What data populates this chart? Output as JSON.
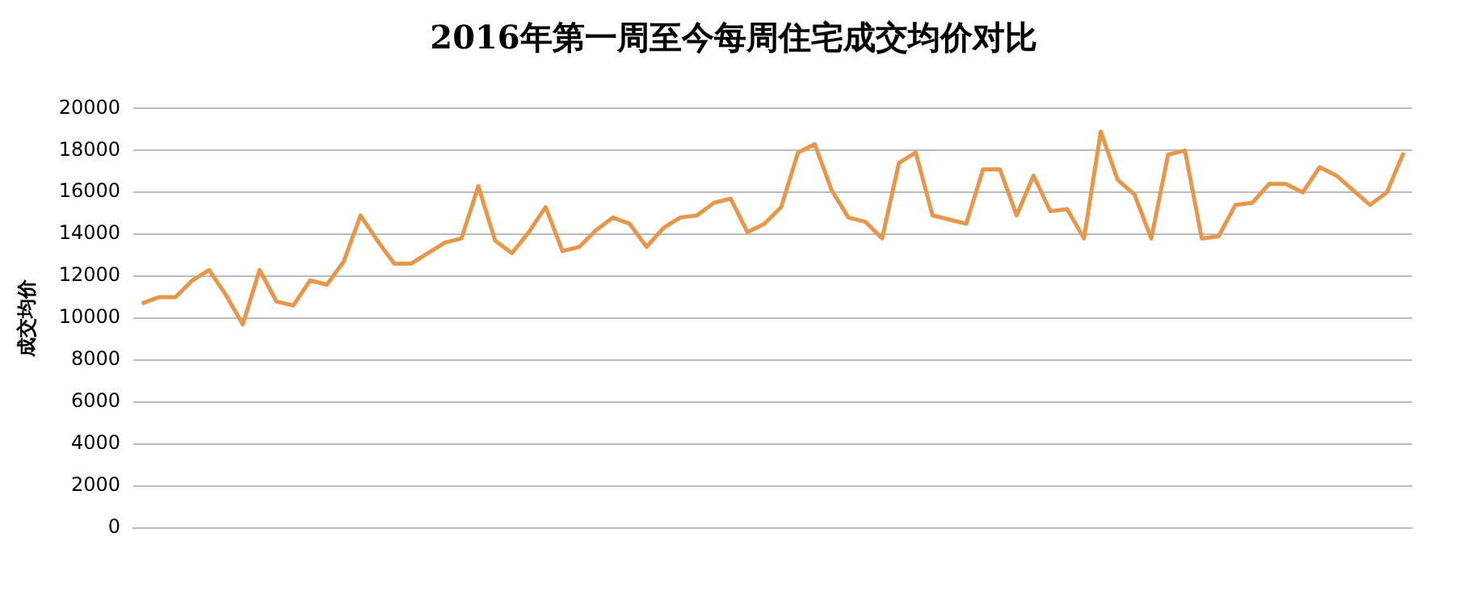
{
  "chart_data": {
    "type": "line",
    "title": "2016年第一周至今每周住宅成交均价对比",
    "ylabel": "成交均价",
    "categories": [
      null,
      null,
      null,
      null,
      null,
      null,
      null,
      null,
      null,
      null,
      null,
      null,
      null,
      null,
      null,
      null,
      null,
      null,
      null,
      null,
      null,
      null,
      null,
      null,
      null,
      null,
      null,
      null,
      null,
      null,
      null,
      null,
      null,
      null,
      null,
      null,
      null,
      null,
      null,
      null,
      null,
      null,
      null,
      null,
      null,
      null,
      null,
      null,
      null,
      null,
      null,
      null,
      null,
      null,
      null,
      null,
      null,
      null,
      null,
      null,
      null,
      null,
      null,
      null,
      null,
      null,
      null,
      null,
      null,
      null,
      null,
      null,
      null,
      null,
      null,
      null
    ],
    "series": [
      {
        "color": "#e8964a",
        "values": [
          10700,
          11000,
          11000,
          11800,
          12300,
          11100,
          9700,
          12300,
          10800,
          10600,
          11800,
          11600,
          12700,
          14900,
          13700,
          12600,
          12600,
          13100,
          13600,
          13800,
          16300,
          13700,
          13100,
          14100,
          15300,
          13200,
          13400,
          14200,
          14800,
          14500,
          13400,
          14300,
          14800,
          14900,
          15500,
          15700,
          14100,
          14500,
          15300,
          17900,
          18300,
          16100,
          14800,
          14600,
          13800,
          17400,
          17900,
          14900,
          14700,
          14500,
          17100,
          17100,
          14900,
          16800,
          15100,
          15200,
          13800,
          18900,
          16600,
          15900,
          13800,
          17800,
          18000,
          13800,
          13900,
          15400,
          15500,
          16400,
          16400,
          16000,
          17200,
          16800,
          16100,
          15400,
          16000,
          17900
        ]
      }
    ],
    "ylim": [
      0,
      20000
    ],
    "yticks": [
      0,
      2000,
      4000,
      6000,
      8000,
      10000,
      12000,
      14000,
      16000,
      18000,
      20000
    ],
    "grid": "y",
    "legend": false,
    "marker": "none",
    "line_style": "solid",
    "tick_labels": "y"
  }
}
